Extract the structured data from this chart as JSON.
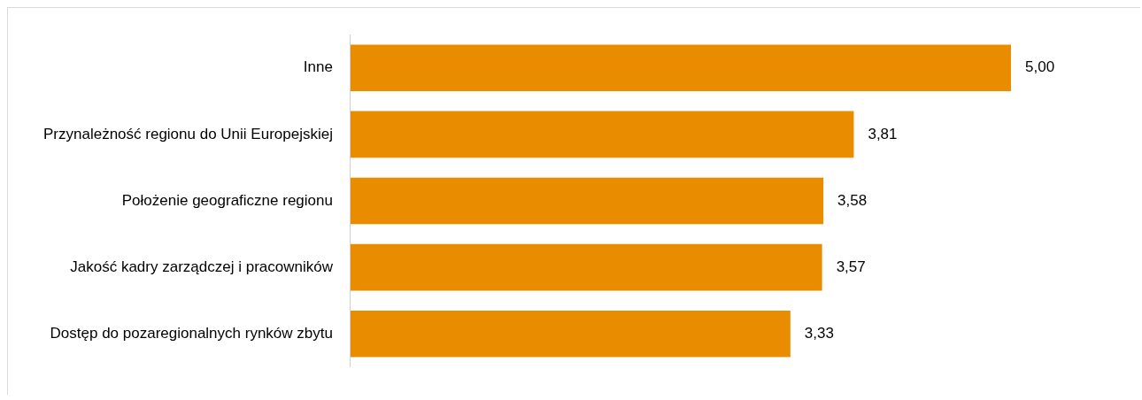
{
  "chart_data": {
    "type": "bar",
    "orientation": "horizontal",
    "categories": [
      "Inne",
      "Przynależność regionu do Unii Europejskiej",
      "Położenie geograficzne regionu",
      "Jakość kadry zarządczej i pracowników",
      "Dostęp do pozaregionalnych rynków zbytu"
    ],
    "values": [
      5.0,
      3.81,
      3.58,
      3.57,
      3.33
    ],
    "value_labels": [
      "5,00",
      "3,81",
      "3,58",
      "3,57",
      "3,33"
    ],
    "color": "#ea8c00",
    "tick_labels": "y",
    "legend": false
  }
}
